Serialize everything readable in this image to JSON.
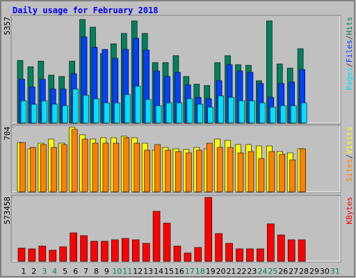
{
  "chart_data": [
    {
      "type": "bar",
      "title": "Daily usage for February 2018",
      "ylim": [
        0,
        5357
      ],
      "yticks": [
        5357
      ],
      "legend_separator": "/",
      "series": [
        {
          "name": "Pages",
          "color": "#00e0ff",
          "values": [
            1150,
            971,
            1150,
            971,
            899,
            1762,
            1438,
            1258,
            1043,
            1043,
            1474,
            1905,
            1222,
            899,
            1043,
            1043,
            1258,
            971,
            827,
            1402,
            1330,
            1150,
            1150,
            1043,
            827,
            899,
            899,
            1043,
            null,
            null,
            null
          ]
        },
        {
          "name": "Files",
          "color": "#0040ff",
          "values": [
            2265,
            1869,
            2265,
            1762,
            1762,
            2553,
            4458,
            3919,
            3811,
            3344,
            3811,
            4386,
            3775,
            2696,
            2409,
            2624,
            1977,
            1330,
            1258,
            2193,
            3020,
            2696,
            2624,
            2049,
            1330,
            2049,
            2121,
            2768,
            null,
            null,
            null
          ]
        },
        {
          "name": "Hits",
          "color": "#00805c",
          "values": [
            3236,
            2912,
            3200,
            2481,
            2409,
            3200,
            5357,
            4961,
            3595,
            4099,
            4638,
            5285,
            4638,
            3128,
            3128,
            3487,
            2409,
            2013,
            1941,
            3128,
            3487,
            3020,
            2984,
            2193,
            5285,
            3056,
            2840,
            3847,
            null,
            null,
            null
          ]
        }
      ]
    },
    {
      "type": "bar",
      "ylim": [
        0,
        704
      ],
      "yticks": [
        704
      ],
      "legend_separator": "/",
      "series": [
        {
          "name": "Sites",
          "color": "#ff8000",
          "values": [
            537,
            484,
            515,
            484,
            515,
            681,
            575,
            530,
            530,
            530,
            590,
            530,
            454,
            515,
            454,
            439,
            424,
            454,
            530,
            484,
            484,
            424,
            439,
            363,
            439,
            409,
            348,
            469,
            null,
            null,
            null
          ]
        },
        {
          "name": "Visits",
          "color": "#ffff00",
          "values": [
            537,
            469,
            530,
            575,
            530,
            704,
            621,
            575,
            590,
            590,
            606,
            590,
            530,
            454,
            484,
            469,
            462,
            484,
            469,
            575,
            560,
            515,
            515,
            500,
            500,
            439,
            424,
            469,
            null,
            null,
            null
          ]
        }
      ]
    },
    {
      "type": "bar",
      "ylim": [
        0,
        573458
      ],
      "yticks": [
        573458
      ],
      "categories": [
        "1",
        "2",
        "3",
        "4",
        "5",
        "6",
        "7",
        "8",
        "9",
        "10",
        "11",
        "12",
        "13",
        "14",
        "15",
        "16",
        "17",
        "18",
        "19",
        "20",
        "21",
        "22",
        "23",
        "24",
        "25",
        "26",
        "27",
        "28",
        "29",
        "30",
        "31"
      ],
      "category_colors": [
        "#000000",
        "#000000",
        "#00805c",
        "#00805c",
        "#000000",
        "#000000",
        "#000000",
        "#000000",
        "#000000",
        "#00805c",
        "#00805c",
        "#000000",
        "#000000",
        "#000000",
        "#000000",
        "#000000",
        "#00805c",
        "#00805c",
        "#000000",
        "#000000",
        "#000000",
        "#000000",
        "#000000",
        "#00805c",
        "#00805c",
        "#000000",
        "#000000",
        "#000000",
        "#000000",
        "#000000",
        "#00805c"
      ],
      "series": [
        {
          "name": "KBytes",
          "color": "#ff0000",
          "values": [
            118427,
            112194,
            137126,
            99728,
            130893,
            255553,
            230621,
            180757,
            180757,
            193223,
            205689,
            193223,
            162058,
            448776,
            342815,
            137126,
            74796,
            124660,
            573458,
            249320,
            162058,
            112194,
            112194,
            112194,
            336582,
            236854,
            193223,
            193223,
            null,
            null,
            null
          ]
        }
      ]
    }
  ]
}
